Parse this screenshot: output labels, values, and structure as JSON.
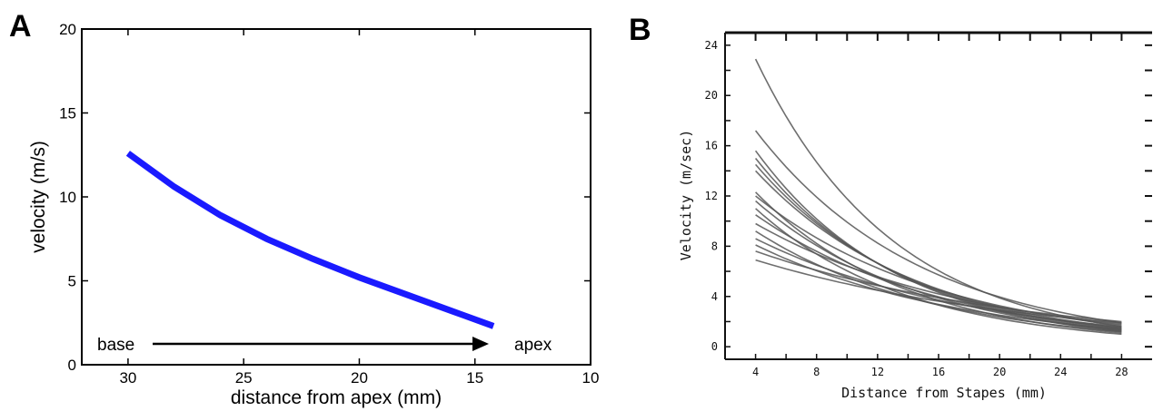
{
  "panels": {
    "a": {
      "label": "A",
      "base_label": "base",
      "apex_label": "apex"
    },
    "b": {
      "label": "B"
    }
  },
  "chart_data": [
    {
      "type": "line",
      "title": "",
      "xlabel": "distance from apex (mm)",
      "ylabel": "velocity (m/s)",
      "xlim": [
        32,
        10
      ],
      "ylim": [
        0,
        20
      ],
      "x_reversed": true,
      "xticks": [
        30,
        25,
        20,
        15,
        10
      ],
      "yticks": [
        0,
        5,
        10,
        15,
        20
      ],
      "grid": false,
      "annotations": [
        "base",
        "apex"
      ],
      "color": "#1a1aff",
      "series": [
        {
          "x": [
            30,
            28,
            26,
            24,
            22,
            20,
            18,
            16,
            14.2
          ],
          "y": [
            12.6,
            10.6,
            8.9,
            7.5,
            6.3,
            5.2,
            4.2,
            3.2,
            2.3
          ]
        }
      ]
    },
    {
      "type": "line",
      "title": "",
      "xlabel": "Distance from Stapes (mm)",
      "ylabel": "Velocity (m/sec)",
      "xlim": [
        2,
        30
      ],
      "ylim": [
        -1,
        25
      ],
      "xticks": [
        4,
        8,
        12,
        16,
        20,
        24,
        28
      ],
      "yticks": [
        0,
        4,
        8,
        12,
        16,
        20,
        24
      ],
      "grid": false,
      "color": "#555555",
      "series": [
        {
          "x": [
            4,
            28
          ],
          "y": [
            22.9,
            1.6
          ]
        },
        {
          "x": [
            4,
            28
          ],
          "y": [
            17.2,
            1.9
          ]
        },
        {
          "x": [
            4,
            28
          ],
          "y": [
            15.6,
            1.2
          ]
        },
        {
          "x": [
            4,
            28
          ],
          "y": [
            15.0,
            1.3
          ]
        },
        {
          "x": [
            4,
            28
          ],
          "y": [
            14.5,
            1.4
          ]
        },
        {
          "x": [
            4,
            28
          ],
          "y": [
            14.0,
            1.5
          ]
        },
        {
          "x": [
            4,
            28
          ],
          "y": [
            12.3,
            1.1
          ]
        },
        {
          "x": [
            4,
            28
          ],
          "y": [
            12.0,
            1.7
          ]
        },
        {
          "x": [
            4,
            28
          ],
          "y": [
            11.6,
            1.3
          ]
        },
        {
          "x": [
            4,
            28
          ],
          "y": [
            11.0,
            1.0
          ]
        },
        {
          "x": [
            4,
            28
          ],
          "y": [
            10.5,
            1.5
          ]
        },
        {
          "x": [
            4,
            28
          ],
          "y": [
            9.8,
            1.8
          ]
        },
        {
          "x": [
            4,
            28
          ],
          "y": [
            9.2,
            1.2
          ]
        },
        {
          "x": [
            4,
            28
          ],
          "y": [
            8.6,
            1.6
          ]
        },
        {
          "x": [
            4,
            28
          ],
          "y": [
            8.1,
            1.4
          ]
        },
        {
          "x": [
            4,
            28
          ],
          "y": [
            7.6,
            2.0
          ]
        },
        {
          "x": [
            4,
            28
          ],
          "y": [
            6.9,
            1.9
          ]
        }
      ]
    }
  ]
}
